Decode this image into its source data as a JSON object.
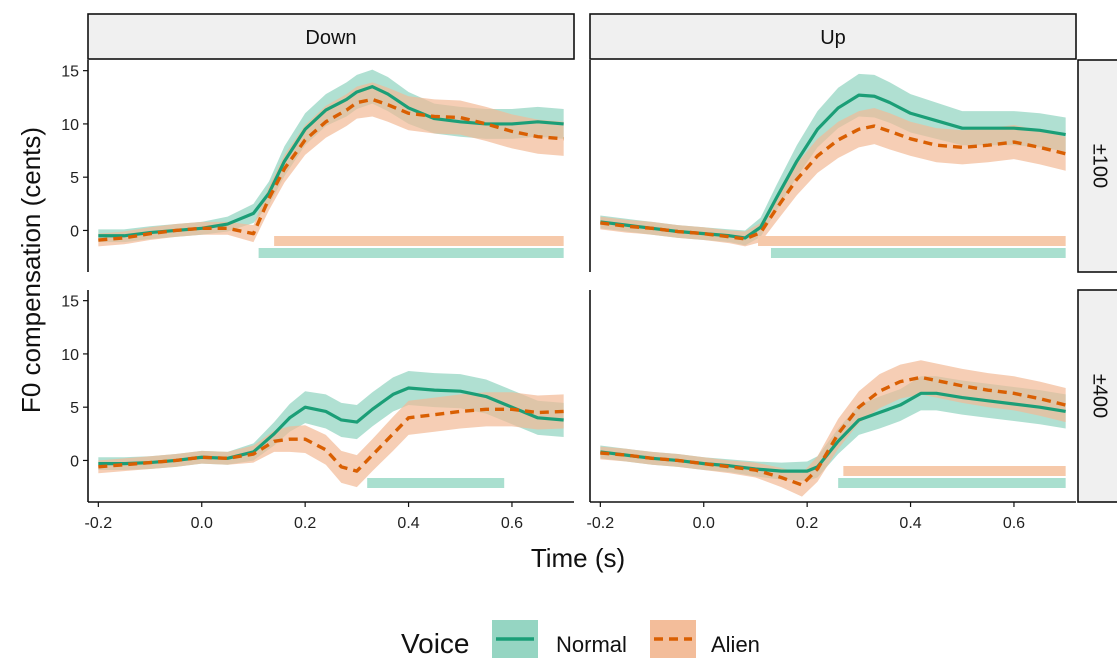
{
  "chart_data": {
    "type": "line",
    "xlabel": "Time (s)",
    "ylabel": "F0 compensation (cents)",
    "xlim": [
      -0.22,
      0.72
    ],
    "ylim": [
      -3.9,
      16
    ],
    "x_ticks": [
      -0.2,
      0.0,
      0.2,
      0.4,
      0.6
    ],
    "x_tick_labels": [
      "-0.2",
      "0.0",
      "0.2",
      "0.4",
      "0.6"
    ],
    "y_ticks": [
      0,
      5,
      10,
      15
    ],
    "y_tick_labels": [
      "0",
      "5",
      "10",
      "15"
    ],
    "columns": [
      "Down",
      "Up"
    ],
    "rows": [
      "±100",
      "±400"
    ],
    "legend": {
      "title": "Voice",
      "position": "bottom",
      "entries": [
        {
          "label": "Normal",
          "color": "#1b9e77",
          "dash": "solid"
        },
        {
          "label": "Alien",
          "color": "#d95f02",
          "dash": "dashed"
        }
      ]
    },
    "colors": {
      "normal": "#1b9e77",
      "normal_band": "#8fd3bf",
      "alien": "#d95f02",
      "alien_band": "#f2b995",
      "sig_normal": "#a9dfcf",
      "sig_alien": "#f6c9aa",
      "strip_bg": "#f0f0f0"
    },
    "panels": [
      {
        "column": "Down",
        "row": "±100",
        "series": [
          {
            "name": "Normal",
            "x": [
              -0.2,
              -0.15,
              -0.1,
              -0.05,
              0.0,
              0.05,
              0.1,
              0.13,
              0.16,
              0.2,
              0.24,
              0.28,
              0.3,
              0.33,
              0.36,
              0.4,
              0.45,
              0.5,
              0.55,
              0.6,
              0.65,
              0.7
            ],
            "y": [
              -0.5,
              -0.5,
              -0.2,
              0.0,
              0.2,
              0.6,
              1.6,
              3.5,
              6.5,
              9.5,
              11.3,
              12.3,
              13.0,
              13.5,
              12.8,
              11.5,
              10.5,
              10.2,
              10.0,
              10.0,
              10.2,
              10.0
            ],
            "ci": [
              0.6,
              0.6,
              0.6,
              0.6,
              0.6,
              0.7,
              0.9,
              1.1,
              1.4,
              1.5,
              1.5,
              1.6,
              1.6,
              1.6,
              1.6,
              1.5,
              1.4,
              1.4,
              1.4,
              1.4,
              1.4,
              1.4
            ]
          },
          {
            "name": "Alien",
            "x": [
              -0.2,
              -0.15,
              -0.1,
              -0.05,
              0.0,
              0.05,
              0.1,
              0.13,
              0.16,
              0.2,
              0.24,
              0.28,
              0.3,
              0.33,
              0.36,
              0.4,
              0.45,
              0.5,
              0.55,
              0.6,
              0.65,
              0.7
            ],
            "y": [
              -0.9,
              -0.7,
              -0.3,
              0.0,
              0.2,
              0.2,
              -0.3,
              3.0,
              5.8,
              8.5,
              10.2,
              11.3,
              12.0,
              12.3,
              11.8,
              11.0,
              10.7,
              10.6,
              10.0,
              9.3,
              8.8,
              8.6
            ],
            "ci": [
              0.6,
              0.6,
              0.6,
              0.6,
              0.6,
              0.6,
              0.8,
              1.1,
              1.3,
              1.4,
              1.5,
              1.5,
              1.5,
              1.6,
              1.6,
              1.6,
              1.6,
              1.6,
              1.6,
              1.6,
              1.6,
              1.6
            ]
          }
        ],
        "significance": [
          {
            "name": "Alien",
            "start": 0.14,
            "end": 0.7
          },
          {
            "name": "Normal",
            "start": 0.11,
            "end": 0.7
          }
        ]
      },
      {
        "column": "Up",
        "row": "±100",
        "series": [
          {
            "name": "Normal",
            "x": [
              -0.2,
              -0.15,
              -0.1,
              -0.05,
              0.0,
              0.05,
              0.08,
              0.11,
              0.14,
              0.18,
              0.22,
              0.26,
              0.3,
              0.33,
              0.36,
              0.4,
              0.45,
              0.5,
              0.55,
              0.6,
              0.65,
              0.7
            ],
            "y": [
              0.8,
              0.5,
              0.2,
              -0.1,
              -0.3,
              -0.5,
              -0.7,
              0.3,
              3.0,
              6.5,
              9.5,
              11.5,
              12.7,
              12.6,
              12.0,
              11.0,
              10.3,
              9.6,
              9.6,
              9.6,
              9.4,
              9.0
            ],
            "ci": [
              0.6,
              0.6,
              0.6,
              0.6,
              0.6,
              0.6,
              0.7,
              0.9,
              1.2,
              1.5,
              1.7,
              1.9,
              2.0,
              2.0,
              1.9,
              1.8,
              1.7,
              1.6,
              1.6,
              1.6,
              1.6,
              1.6
            ]
          },
          {
            "name": "Alien",
            "x": [
              -0.2,
              -0.15,
              -0.1,
              -0.05,
              0.0,
              0.05,
              0.08,
              0.11,
              0.14,
              0.18,
              0.22,
              0.26,
              0.3,
              0.33,
              0.36,
              0.4,
              0.45,
              0.5,
              0.55,
              0.6,
              0.65,
              0.7
            ],
            "y": [
              0.7,
              0.4,
              0.2,
              -0.1,
              -0.3,
              -0.6,
              -0.8,
              -0.2,
              2.0,
              4.8,
              7.0,
              8.5,
              9.5,
              9.8,
              9.3,
              8.6,
              8.0,
              7.8,
              8.0,
              8.3,
              7.8,
              7.2
            ],
            "ci": [
              0.6,
              0.6,
              0.6,
              0.6,
              0.6,
              0.6,
              0.7,
              0.9,
              1.2,
              1.5,
              1.6,
              1.7,
              1.7,
              1.7,
              1.7,
              1.6,
              1.6,
              1.6,
              1.6,
              1.6,
              1.6,
              1.6
            ]
          }
        ],
        "significance": [
          {
            "name": "Alien",
            "start": 0.105,
            "end": 0.7
          },
          {
            "name": "Normal",
            "start": 0.13,
            "end": 0.7
          }
        ]
      },
      {
        "column": "Down",
        "row": "±400",
        "series": [
          {
            "name": "Normal",
            "x": [
              -0.2,
              -0.15,
              -0.1,
              -0.05,
              0.0,
              0.05,
              0.1,
              0.14,
              0.17,
              0.2,
              0.24,
              0.27,
              0.3,
              0.33,
              0.37,
              0.4,
              0.45,
              0.5,
              0.55,
              0.6,
              0.65,
              0.7
            ],
            "y": [
              -0.3,
              -0.3,
              -0.2,
              0.0,
              0.3,
              0.2,
              0.8,
              2.5,
              4.0,
              5.0,
              4.6,
              3.8,
              3.6,
              4.8,
              6.2,
              6.8,
              6.6,
              6.5,
              6.0,
              5.0,
              4.0,
              3.8
            ],
            "ci": [
              0.6,
              0.6,
              0.6,
              0.6,
              0.6,
              0.6,
              0.8,
              1.1,
              1.3,
              1.5,
              1.6,
              1.6,
              1.6,
              1.6,
              1.6,
              1.6,
              1.6,
              1.6,
              1.6,
              1.6,
              1.6,
              1.6
            ]
          },
          {
            "name": "Alien",
            "x": [
              -0.2,
              -0.15,
              -0.1,
              -0.05,
              0.0,
              0.05,
              0.1,
              0.14,
              0.17,
              0.2,
              0.24,
              0.27,
              0.3,
              0.33,
              0.37,
              0.4,
              0.45,
              0.5,
              0.55,
              0.6,
              0.65,
              0.7
            ],
            "y": [
              -0.6,
              -0.4,
              -0.2,
              0.0,
              0.3,
              0.2,
              0.6,
              1.8,
              2.0,
              2.0,
              1.0,
              -0.6,
              -1.0,
              0.5,
              2.5,
              4.0,
              4.3,
              4.6,
              4.8,
              4.8,
              4.5,
              4.6
            ],
            "ci": [
              0.6,
              0.6,
              0.6,
              0.6,
              0.6,
              0.6,
              0.8,
              1.0,
              1.2,
              1.3,
              1.4,
              1.5,
              1.5,
              1.5,
              1.6,
              1.6,
              1.6,
              1.6,
              1.6,
              1.6,
              1.6,
              1.6
            ]
          }
        ],
        "significance": [
          {
            "name": "Normal",
            "start": 0.32,
            "end": 0.585
          }
        ]
      },
      {
        "column": "Up",
        "row": "±400",
        "series": [
          {
            "name": "Normal",
            "x": [
              -0.2,
              -0.15,
              -0.1,
              -0.05,
              0.0,
              0.05,
              0.1,
              0.15,
              0.2,
              0.22,
              0.26,
              0.3,
              0.34,
              0.38,
              0.42,
              0.45,
              0.5,
              0.55,
              0.6,
              0.65,
              0.7
            ],
            "y": [
              0.8,
              0.5,
              0.2,
              0.0,
              -0.3,
              -0.5,
              -0.8,
              -1.0,
              -1.0,
              -0.6,
              1.8,
              3.8,
              4.5,
              5.2,
              6.3,
              6.3,
              5.9,
              5.6,
              5.3,
              5.0,
              4.6
            ],
            "ci": [
              0.6,
              0.6,
              0.6,
              0.6,
              0.6,
              0.6,
              0.7,
              0.8,
              0.9,
              1.0,
              1.2,
              1.4,
              1.5,
              1.5,
              1.6,
              1.6,
              1.6,
              1.6,
              1.6,
              1.6,
              1.6
            ]
          },
          {
            "name": "Alien",
            "x": [
              -0.2,
              -0.15,
              -0.1,
              -0.05,
              0.0,
              0.05,
              0.1,
              0.15,
              0.19,
              0.22,
              0.26,
              0.3,
              0.34,
              0.38,
              0.42,
              0.45,
              0.5,
              0.55,
              0.6,
              0.65,
              0.7
            ],
            "y": [
              0.7,
              0.5,
              0.2,
              0.0,
              -0.3,
              -0.6,
              -0.9,
              -1.6,
              -2.3,
              -0.8,
              2.5,
              5.0,
              6.5,
              7.4,
              7.8,
              7.5,
              7.0,
              6.6,
              6.3,
              5.8,
              5.2
            ],
            "ci": [
              0.6,
              0.6,
              0.6,
              0.6,
              0.6,
              0.6,
              0.7,
              0.9,
              1.1,
              1.2,
              1.4,
              1.5,
              1.6,
              1.6,
              1.6,
              1.6,
              1.6,
              1.6,
              1.6,
              1.6,
              1.6
            ]
          }
        ],
        "significance": [
          {
            "name": "Alien",
            "start": 0.27,
            "end": 0.7
          },
          {
            "name": "Normal",
            "start": 0.26,
            "end": 0.7
          }
        ]
      }
    ]
  }
}
